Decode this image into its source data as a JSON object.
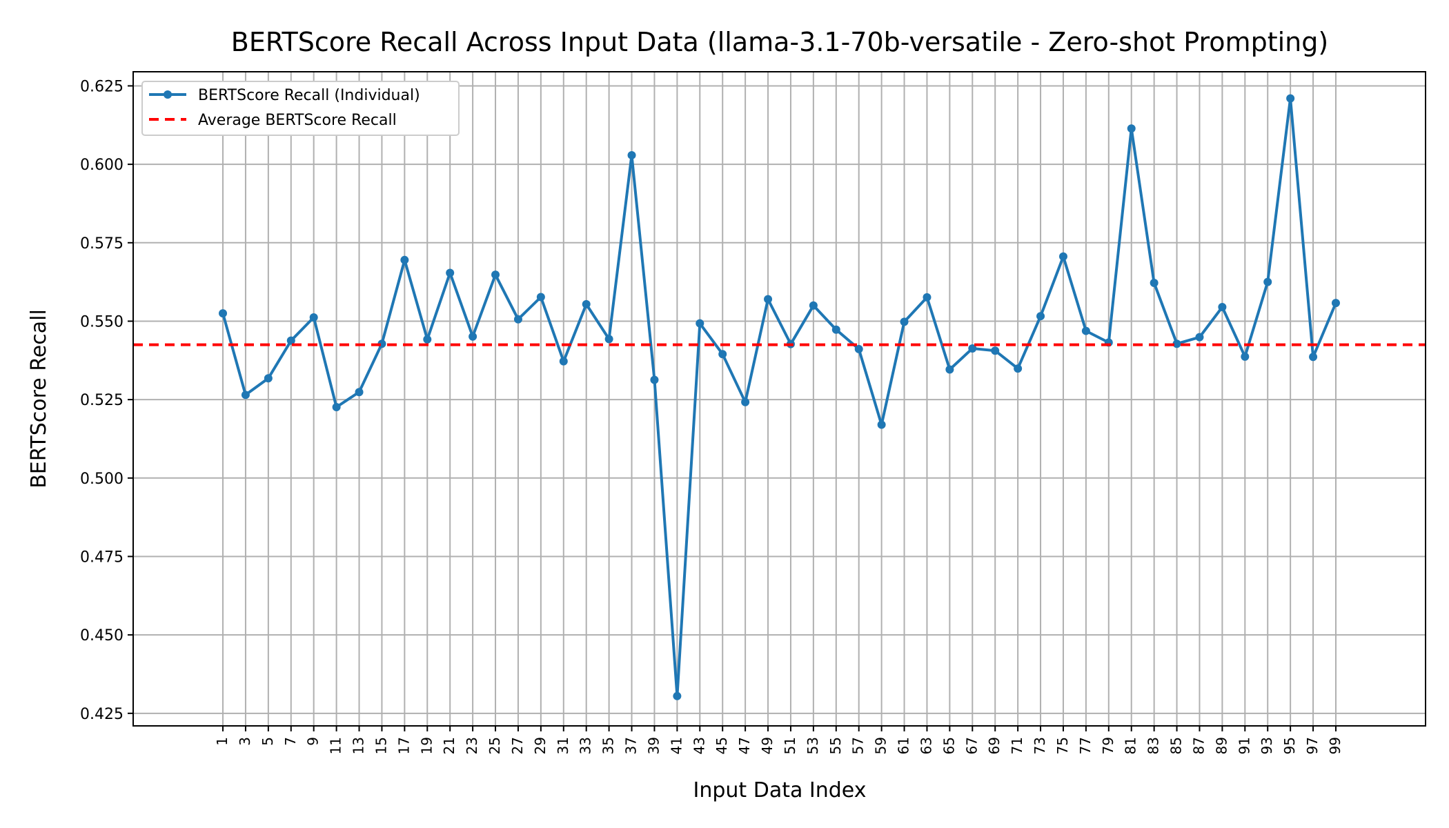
{
  "chart_data": {
    "type": "line",
    "title": "BERTScore Recall Across Input Data (llama-3.1-70b-versatile - Zero-shot Prompting)",
    "xlabel": "Input Data Index",
    "ylabel": "BERTScore Recall",
    "x": [
      1,
      3,
      5,
      7,
      9,
      11,
      13,
      15,
      17,
      19,
      21,
      23,
      25,
      27,
      29,
      31,
      33,
      35,
      37,
      39,
      41,
      43,
      45,
      47,
      49,
      51,
      53,
      55,
      57,
      59,
      61,
      63,
      65,
      67,
      69,
      71,
      73,
      75,
      77,
      79,
      81,
      83,
      85,
      87,
      89,
      91,
      93,
      95,
      97,
      99
    ],
    "xlim": [
      -6.9,
      106.9
    ],
    "ylim": [
      0.421,
      0.6295
    ],
    "yticks": [
      "0.425",
      "0.450",
      "0.475",
      "0.500",
      "0.525",
      "0.550",
      "0.575",
      "0.600",
      "0.625"
    ],
    "xticks": [
      "1",
      "3",
      "5",
      "7",
      "9",
      "11",
      "13",
      "15",
      "17",
      "19",
      "21",
      "23",
      "25",
      "27",
      "29",
      "31",
      "33",
      "35",
      "37",
      "39",
      "41",
      "43",
      "45",
      "47",
      "49",
      "51",
      "53",
      "55",
      "57",
      "59",
      "61",
      "63",
      "65",
      "67",
      "69",
      "71",
      "73",
      "75",
      "77",
      "79",
      "81",
      "83",
      "85",
      "87",
      "89",
      "91",
      "93",
      "95",
      "97",
      "99"
    ],
    "series": [
      {
        "name": "BERTScore Recall (Individual)",
        "color": "#1f77b4",
        "values": [
          0.5525,
          0.5265,
          0.5318,
          0.5438,
          0.5512,
          0.5226,
          0.5274,
          0.5428,
          0.5695,
          0.5442,
          0.5654,
          0.5451,
          0.5648,
          0.5506,
          0.5577,
          0.5372,
          0.5554,
          0.5443,
          0.6029,
          0.5313,
          0.4305,
          0.5493,
          0.5395,
          0.5242,
          0.557,
          0.5427,
          0.555,
          0.5473,
          0.5411,
          0.517,
          0.5498,
          0.5576,
          0.5346,
          0.5413,
          0.5406,
          0.5349,
          0.5516,
          0.5706,
          0.5469,
          0.5432,
          0.6114,
          0.5622,
          0.5428,
          0.5449,
          0.5545,
          0.5387,
          0.5625,
          0.621,
          0.5386,
          0.5558
        ]
      }
    ],
    "average": {
      "name": "Average BERTScore Recall",
      "value": 0.5425,
      "color": "#ff0000"
    },
    "legend": "top-left",
    "grid": true
  }
}
